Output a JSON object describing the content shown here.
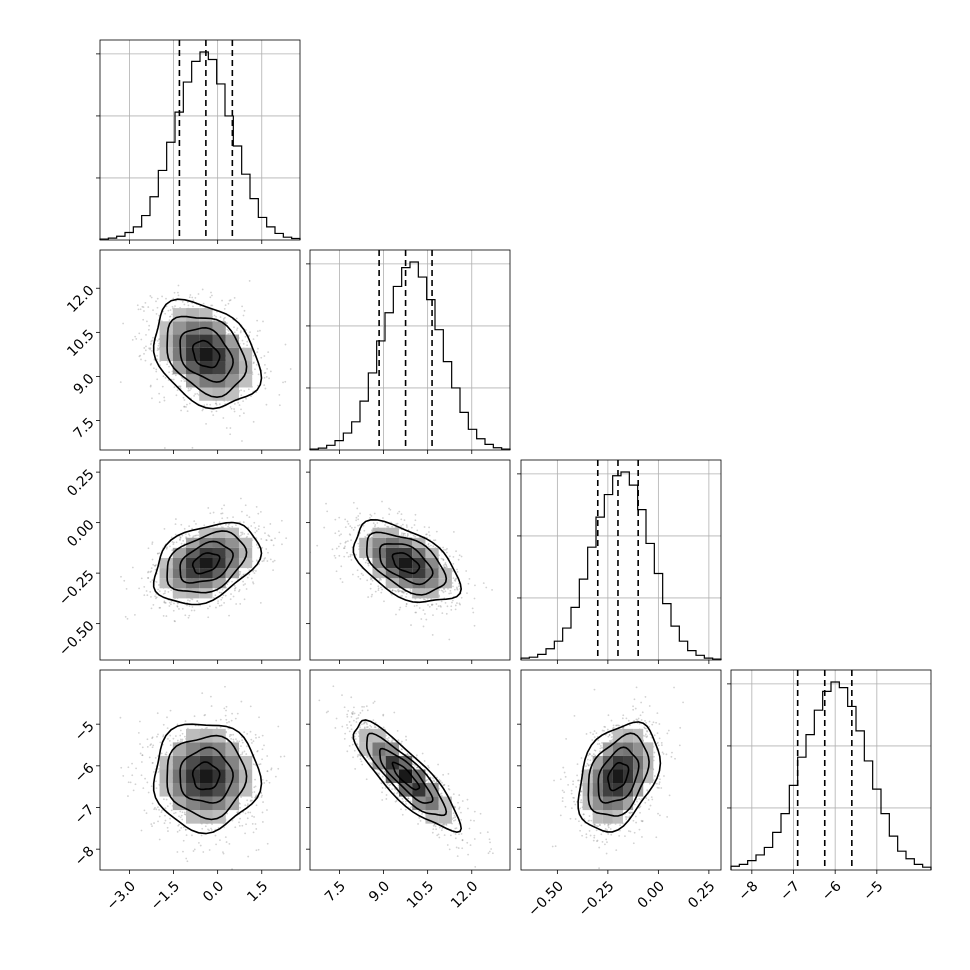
{
  "chart_data": {
    "type": "corner",
    "title": "",
    "n_params": 4,
    "quantile_lines": true,
    "grid": true,
    "params": [
      {
        "index": 0,
        "range": [
          -4.0,
          2.8
        ],
        "ticks": [
          "−3.0",
          "−1.5",
          "0.0",
          "1.5"
        ],
        "tick_values": [
          -3.0,
          -1.5,
          0.0,
          1.5
        ],
        "quantiles": [
          -1.3,
          -0.4,
          0.5
        ]
      },
      {
        "index": 1,
        "range": [
          6.5,
          13.3
        ],
        "ticks": [
          "7.5",
          "9.0",
          "10.5",
          "12.0"
        ],
        "tick_values": [
          7.5,
          9.0,
          10.5,
          12.0
        ],
        "quantiles": [
          8.85,
          9.75,
          10.65
        ]
      },
      {
        "index": 2,
        "range": [
          -0.68,
          0.31
        ],
        "ticks": [
          "−0.50",
          "−0.25",
          "0.00",
          "0.25"
        ],
        "tick_values": [
          -0.5,
          -0.25,
          0.0,
          0.25
        ],
        "quantiles": [
          -0.3,
          -0.2,
          -0.1
        ]
      },
      {
        "index": 3,
        "range": [
          -8.5,
          -3.7
        ],
        "ticks": [
          "−8",
          "−7",
          "−6",
          "−5"
        ],
        "tick_values": [
          -8,
          -7,
          -6,
          -5
        ],
        "quantiles": [
          -6.9,
          -6.25,
          -5.6
        ]
      }
    ],
    "histograms": [
      [
        0.005,
        0.01,
        0.02,
        0.04,
        0.07,
        0.13,
        0.23,
        0.37,
        0.52,
        0.68,
        0.84,
        0.95,
        1.0,
        0.96,
        0.83,
        0.66,
        0.5,
        0.35,
        0.22,
        0.12,
        0.07,
        0.035,
        0.015,
        0.008
      ],
      [
        0.005,
        0.01,
        0.025,
        0.05,
        0.09,
        0.15,
        0.26,
        0.41,
        0.58,
        0.73,
        0.87,
        0.97,
        1.0,
        0.92,
        0.8,
        0.64,
        0.47,
        0.33,
        0.2,
        0.11,
        0.06,
        0.03,
        0.012,
        0.005
      ],
      [
        0.01,
        0.015,
        0.03,
        0.06,
        0.1,
        0.17,
        0.28,
        0.43,
        0.6,
        0.76,
        0.88,
        0.98,
        1.0,
        0.93,
        0.8,
        0.62,
        0.46,
        0.3,
        0.18,
        0.1,
        0.05,
        0.025,
        0.01,
        0.005
      ],
      [
        0.02,
        0.03,
        0.05,
        0.08,
        0.12,
        0.2,
        0.3,
        0.45,
        0.6,
        0.72,
        0.85,
        0.95,
        1.0,
        0.97,
        0.87,
        0.74,
        0.58,
        0.43,
        0.3,
        0.18,
        0.1,
        0.06,
        0.03,
        0.015
      ]
    ],
    "pair_stats": [
      {
        "i": 1,
        "j": 0,
        "mean": [
          -0.4,
          9.75
        ],
        "sigma": [
          0.9,
          0.9
        ],
        "rho": -0.3
      },
      {
        "i": 2,
        "j": 0,
        "mean": [
          -0.4,
          -0.2
        ],
        "sigma": [
          0.9,
          0.1
        ],
        "rho": 0.35
      },
      {
        "i": 2,
        "j": 1,
        "mean": [
          9.75,
          -0.2
        ],
        "sigma": [
          0.9,
          0.1
        ],
        "rho": -0.5
      },
      {
        "i": 3,
        "j": 0,
        "mean": [
          -0.4,
          -6.25
        ],
        "sigma": [
          0.9,
          0.65
        ],
        "rho": 0.0
      },
      {
        "i": 3,
        "j": 1,
        "mean": [
          9.75,
          -6.25
        ],
        "sigma": [
          0.9,
          0.65
        ],
        "rho": -0.85
      },
      {
        "i": 3,
        "j": 2,
        "mean": [
          -0.2,
          -6.25
        ],
        "sigma": [
          0.1,
          0.65
        ],
        "rho": 0.35
      }
    ],
    "contour_levels_sigma": [
      0.5,
      1.0,
      1.5,
      2.0
    ]
  }
}
